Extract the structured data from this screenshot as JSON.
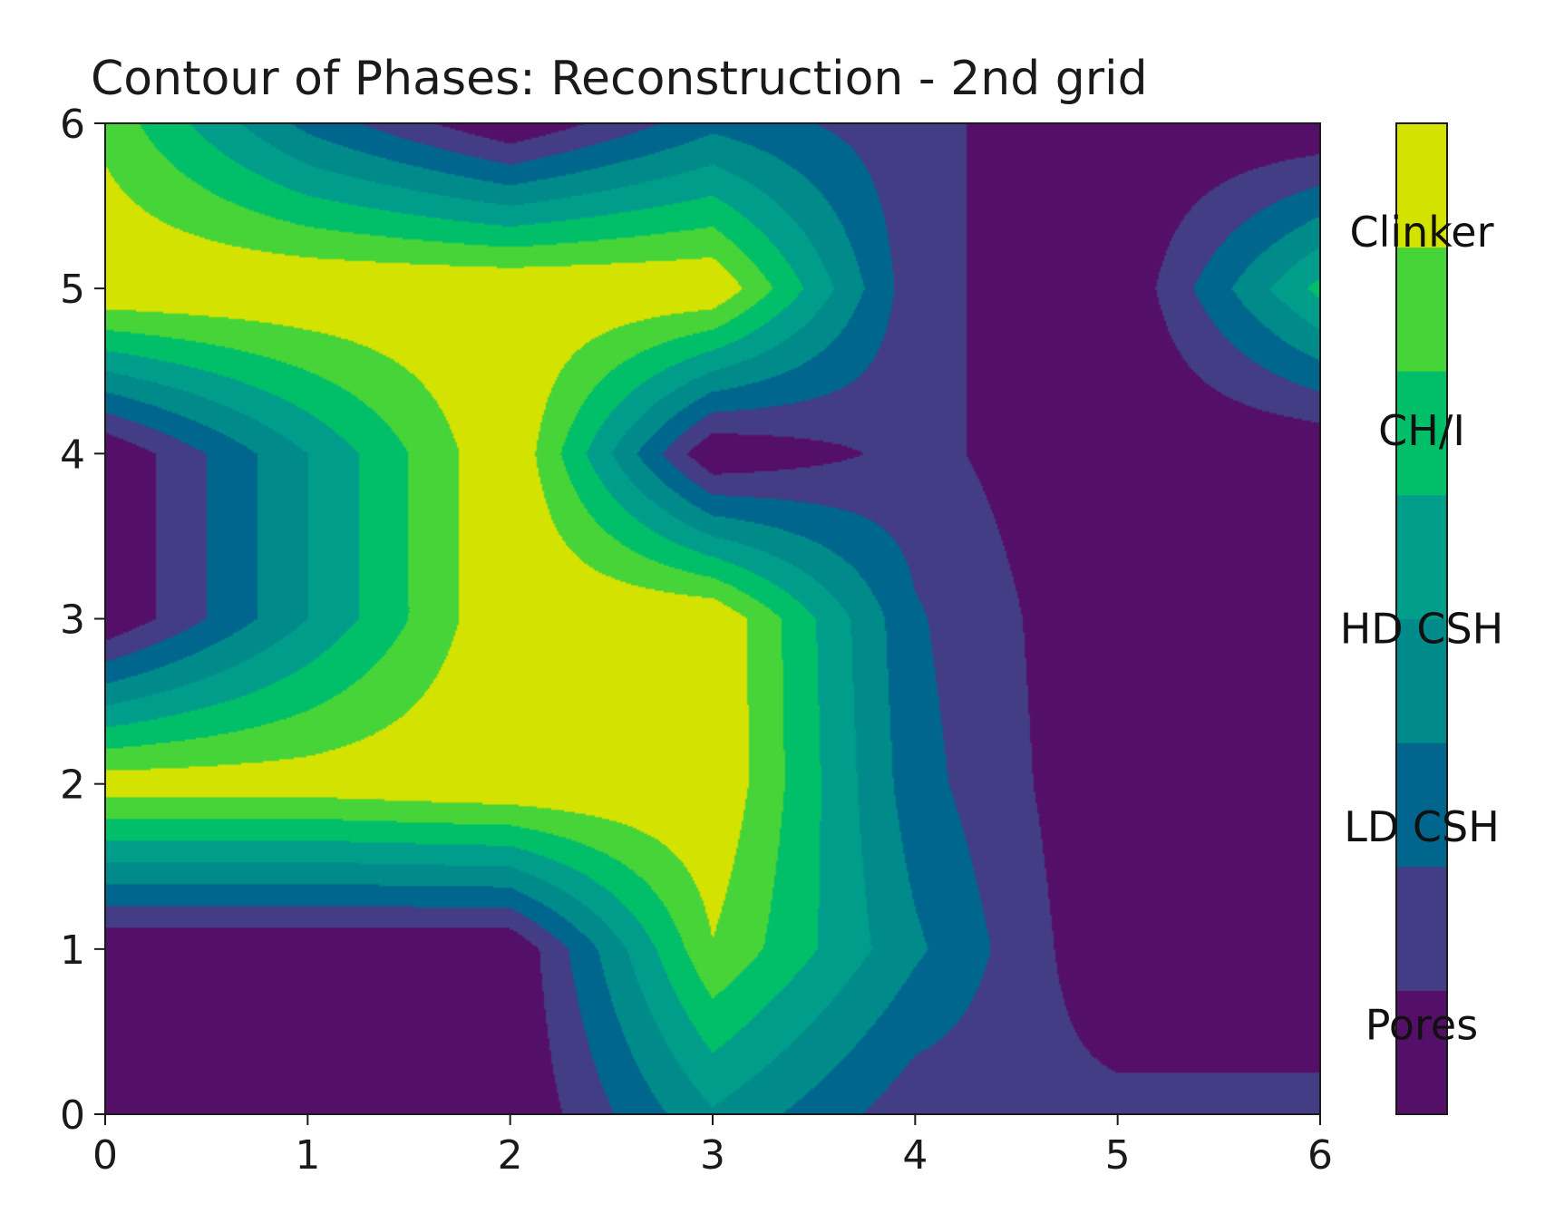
{
  "chart_data": {
    "type": "heatmap",
    "title": "Contour of Phases: Reconstruction - 2nd grid",
    "xlabel": "",
    "ylabel": "",
    "xlim": [
      0,
      6
    ],
    "ylim": [
      0,
      6
    ],
    "x_ticks": [
      "0",
      "1",
      "2",
      "3",
      "4",
      "5",
      "6"
    ],
    "y_ticks": [
      "0",
      "1",
      "2",
      "3",
      "4",
      "5",
      "6"
    ],
    "grid": false,
    "x": [
      0,
      1,
      2,
      3,
      4,
      5,
      6
    ],
    "y": [
      0,
      1,
      2,
      3,
      4,
      5,
      6
    ],
    "z": [
      [
        0.0,
        0.0,
        0.0,
        2.9,
        1.0,
        1.0,
        1.0
      ],
      [
        0.0,
        0.0,
        0.0,
        5.2,
        2.4,
        0.0,
        0.0
      ],
      [
        5.7,
        5.7,
        6.0,
        6.0,
        1.8,
        0.0,
        0.0
      ],
      [
        0.0,
        3.0,
        6.0,
        6.0,
        1.6,
        0.0,
        0.0
      ],
      [
        0.0,
        3.0,
        6.0,
        0.0,
        1.0,
        0.0,
        0.0
      ],
      [
        6.0,
        6.0,
        6.0,
        6.0,
        1.0,
        0.0,
        4.0
      ],
      [
        5.0,
        2.0,
        0.0,
        2.0,
        1.0,
        0.0,
        0.0
      ]
    ],
    "levels": [
      0,
      0.75,
      1.5,
      2.25,
      3,
      3.75,
      4.5,
      5.25,
      6
    ],
    "level_colors": [
      "#541068",
      "#433d86",
      "#00668d",
      "#008b8b",
      "#009e8a",
      "#00bf68",
      "#46d439",
      "#d4e200"
    ],
    "colorbar": {
      "labels": [
        "Clinker",
        "CH/I",
        "HD CSH",
        "LD CSH",
        "Pores"
      ],
      "placement": "right"
    }
  }
}
